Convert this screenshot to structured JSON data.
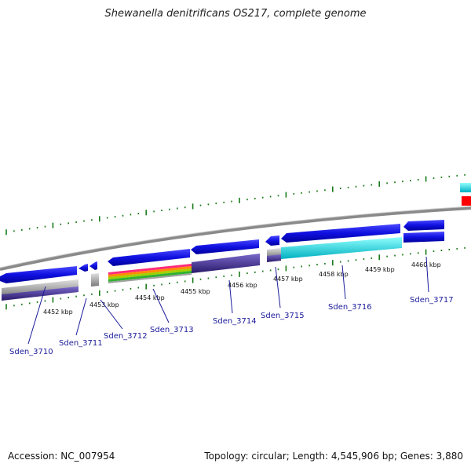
{
  "title": "Shewanella denitrificans OS217, complete genome",
  "footer": {
    "accession": "Accession: NC_007954",
    "summary": "Topology: circular; Length: 4,545,906 bp; Genes: 3,880"
  },
  "colors": {
    "backbone": "#8a8a8a",
    "gene_blue": "#1010e0",
    "tick_green": "#1a7a1a",
    "label_blue": "#1a1a9a",
    "cyan": "#00e0e0",
    "red": "#ff0000",
    "purple": "#4a3a8a"
  },
  "scale_labels": [
    "4452 kbp",
    "4453 kbp",
    "4454 kbp",
    "4455 kbp",
    "4456 kbp",
    "4457 kbp",
    "4458 kbp",
    "4459 kbp",
    "4460 kbp"
  ],
  "genes": [
    "Sden_3710",
    "Sden_3711",
    "Sden_3712",
    "Sden_3713",
    "Sden_3714",
    "Sden_3715",
    "Sden_3716",
    "Sden_3717"
  ]
}
